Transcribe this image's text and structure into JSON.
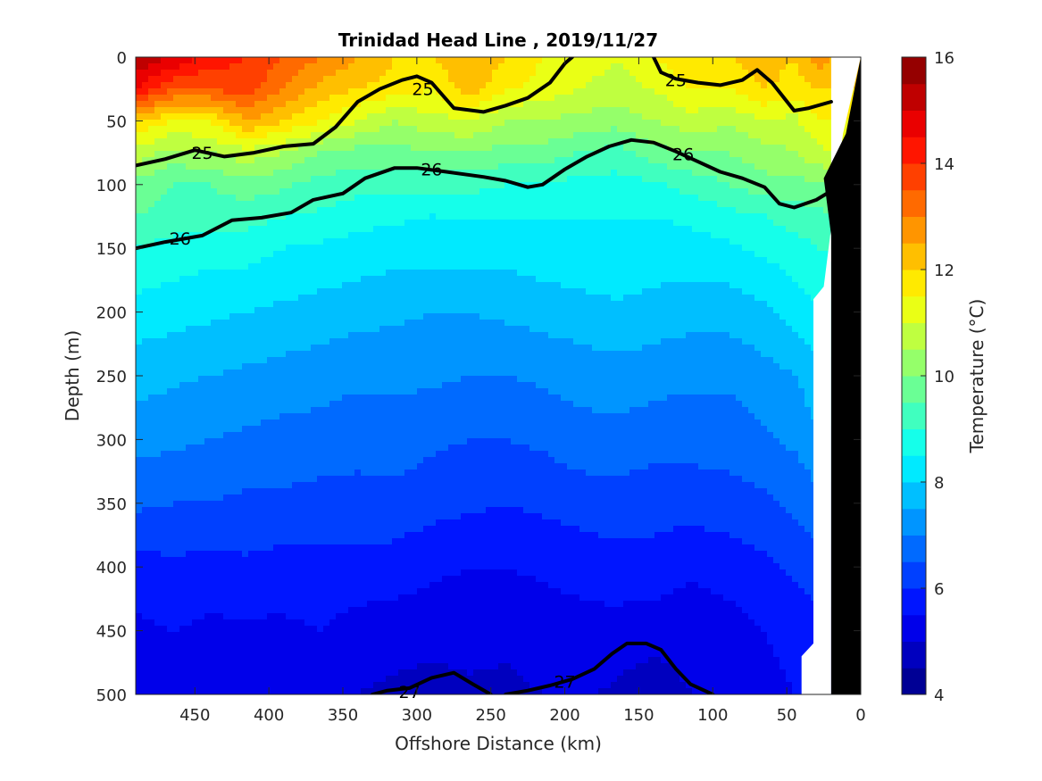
{
  "chart_data": {
    "type": "heatmap",
    "subtype": "filled-contour-section",
    "title": "Trinidad Head Line , 2019/11/27",
    "xlabel": "Offshore Distance (km)",
    "ylabel": "Depth (m)",
    "xlim": [
      490,
      0
    ],
    "ylim": [
      0,
      500
    ],
    "x_reversed": true,
    "y_reversed": true,
    "xticks": [
      450,
      400,
      350,
      300,
      250,
      200,
      150,
      100,
      50,
      0
    ],
    "yticks": [
      0,
      50,
      100,
      150,
      200,
      250,
      300,
      350,
      400,
      450,
      500
    ],
    "colorbar": {
      "label": "Temperature (°C)",
      "min": 4,
      "max": 16,
      "step": 0.5,
      "ticks": [
        4,
        6,
        8,
        10,
        12,
        14,
        16
      ],
      "colormap": "jet",
      "position": "right"
    },
    "temperature_field": {
      "distance_km": [
        490,
        465,
        440,
        415,
        390,
        365,
        340,
        315,
        290,
        265,
        240,
        215,
        190,
        165,
        140,
        115,
        90,
        65,
        45,
        30,
        20
      ],
      "depth_m": [
        0,
        25,
        50,
        75,
        100,
        125,
        150,
        200,
        250,
        300,
        350,
        400,
        450,
        500
      ],
      "rows": [
        [
          15.5,
          15.0,
          14.3,
          14.0,
          13.5,
          13.0,
          12.5,
          12.0,
          12.0,
          12.5,
          12.0,
          11.5,
          11.3,
          11.0,
          11.5,
          12.0,
          12.0,
          12.3,
          12.0,
          12.8,
          12.5
        ],
        [
          14.5,
          13.5,
          13.5,
          13.8,
          13.0,
          12.3,
          12.0,
          11.8,
          11.5,
          12.3,
          11.6,
          11.3,
          11.0,
          10.8,
          11.0,
          11.5,
          11.5,
          12.0,
          11.8,
          12.0,
          12.0
        ],
        [
          12.0,
          11.5,
          11.5,
          12.5,
          12.0,
          11.5,
          11.0,
          10.5,
          10.8,
          11.0,
          10.5,
          10.5,
          10.3,
          10.2,
          10.5,
          10.8,
          10.6,
          11.0,
          10.8,
          11.5,
          11.5
        ],
        [
          10.8,
          10.3,
          10.5,
          10.8,
          10.5,
          10.0,
          9.8,
          9.8,
          10.0,
          10.0,
          9.8,
          9.8,
          9.5,
          9.3,
          9.8,
          10.0,
          10.0,
          10.3,
          10.5,
          10.8,
          11.0
        ],
        [
          9.8,
          9.5,
          9.5,
          9.8,
          9.6,
          9.3,
          9.2,
          9.2,
          9.2,
          9.2,
          9.0,
          9.0,
          8.8,
          8.8,
          8.9,
          9.2,
          9.5,
          9.8,
          9.8,
          10.0,
          10.0
        ],
        [
          9.5,
          9.3,
          9.2,
          9.2,
          9.0,
          8.9,
          8.7,
          8.6,
          8.5,
          8.5,
          8.5,
          8.5,
          8.5,
          8.5,
          8.5,
          8.6,
          8.8,
          9.0,
          9.2,
          9.3,
          9.5
        ],
        [
          9.0,
          8.8,
          8.7,
          8.7,
          8.5,
          8.4,
          8.3,
          8.2,
          8.2,
          8.2,
          8.2,
          8.3,
          8.4,
          8.4,
          8.3,
          8.3,
          8.4,
          8.6,
          8.8,
          9.0,
          9.0
        ],
        [
          8.3,
          8.2,
          8.1,
          8.0,
          7.9,
          7.8,
          7.7,
          7.6,
          7.5,
          7.5,
          7.6,
          7.7,
          7.8,
          7.9,
          7.8,
          7.7,
          7.7,
          7.9,
          8.2,
          8.4,
          8.4
        ],
        [
          7.7,
          7.6,
          7.5,
          7.4,
          7.3,
          7.2,
          7.1,
          7.1,
          7.1,
          7.0,
          7.0,
          7.1,
          7.2,
          7.3,
          7.2,
          7.1,
          7.1,
          7.3,
          7.5,
          7.8,
          7.8
        ],
        [
          7.2,
          7.1,
          7.0,
          6.9,
          6.8,
          6.8,
          6.7,
          6.8,
          6.6,
          6.5,
          6.5,
          6.6,
          6.8,
          6.8,
          6.7,
          6.7,
          6.7,
          6.9,
          7.1,
          7.4,
          7.4
        ],
        [
          6.6,
          6.5,
          6.5,
          6.4,
          6.4,
          6.3,
          6.3,
          6.3,
          6.2,
          6.1,
          6.0,
          6.1,
          6.2,
          6.3,
          6.2,
          6.2,
          6.3,
          6.4,
          6.6,
          6.8,
          6.8
        ],
        [
          5.8,
          5.9,
          5.8,
          5.9,
          5.8,
          5.8,
          5.8,
          5.8,
          5.6,
          5.5,
          5.5,
          5.6,
          5.7,
          5.8,
          5.8,
          5.6,
          5.7,
          5.9,
          6.1,
          6.3,
          6.3
        ],
        [
          5.4,
          5.5,
          5.4,
          5.4,
          5.4,
          5.5,
          5.3,
          5.2,
          5.2,
          5.2,
          5.1,
          5.2,
          5.3,
          5.3,
          5.2,
          5.2,
          5.3,
          5.5,
          5.7,
          5.8,
          5.8
        ],
        [
          5.2,
          5.3,
          5.2,
          5.2,
          5.2,
          5.2,
          5.0,
          4.9,
          4.8,
          4.9,
          4.9,
          5.0,
          5.1,
          4.9,
          4.7,
          5.0,
          5.2,
          5.3,
          5.5,
          5.6,
          5.6
        ]
      ]
    },
    "density_contours": [
      {
        "label": "25",
        "label_positions": [
          [
            296,
            25
          ],
          [
            445,
            75
          ],
          [
            125,
            18
          ]
        ],
        "points": [
          [
            490,
            85
          ],
          [
            470,
            80
          ],
          [
            450,
            73
          ],
          [
            430,
            78
          ],
          [
            410,
            75
          ],
          [
            390,
            70
          ],
          [
            370,
            68
          ],
          [
            355,
            55
          ],
          [
            340,
            35
          ],
          [
            325,
            25
          ],
          [
            310,
            18
          ],
          [
            300,
            15
          ],
          [
            290,
            20
          ],
          [
            275,
            40
          ],
          [
            255,
            43
          ],
          [
            240,
            38
          ],
          [
            225,
            32
          ],
          [
            210,
            20
          ],
          [
            200,
            5
          ],
          [
            195,
            0
          ]
        ]
      },
      {
        "label": "25",
        "label_positions": [
          [
            125,
            18
          ]
        ],
        "points": [
          [
            140,
            0
          ],
          [
            135,
            12
          ],
          [
            125,
            17
          ],
          [
            110,
            20
          ],
          [
            95,
            22
          ],
          [
            80,
            18
          ],
          [
            70,
            10
          ],
          [
            60,
            20
          ],
          [
            45,
            42
          ],
          [
            35,
            40
          ],
          [
            20,
            35
          ]
        ]
      },
      {
        "label": "26",
        "label_positions": [
          [
            290,
            88
          ],
          [
            460,
            142
          ],
          [
            120,
            76
          ]
        ],
        "points": [
          [
            490,
            150
          ],
          [
            470,
            145
          ],
          [
            445,
            140
          ],
          [
            425,
            128
          ],
          [
            405,
            126
          ],
          [
            385,
            122
          ],
          [
            370,
            112
          ],
          [
            350,
            107
          ],
          [
            335,
            95
          ],
          [
            315,
            87
          ],
          [
            300,
            87
          ],
          [
            280,
            90
          ],
          [
            255,
            94
          ],
          [
            240,
            97
          ],
          [
            225,
            102
          ],
          [
            215,
            100
          ],
          [
            200,
            88
          ],
          [
            185,
            78
          ],
          [
            170,
            70
          ],
          [
            155,
            65
          ],
          [
            140,
            67
          ],
          [
            125,
            74
          ],
          [
            110,
            82
          ],
          [
            95,
            90
          ],
          [
            80,
            95
          ],
          [
            65,
            102
          ],
          [
            55,
            115
          ],
          [
            45,
            118
          ],
          [
            30,
            112
          ],
          [
            20,
            105
          ]
        ]
      },
      {
        "label": "27",
        "label_positions": [
          [
            305,
            498
          ],
          [
            200,
            490
          ]
        ],
        "points": [
          [
            330,
            500
          ],
          [
            320,
            497
          ],
          [
            305,
            495
          ],
          [
            290,
            487
          ],
          [
            275,
            483
          ],
          [
            262,
            492
          ],
          [
            250,
            500
          ]
        ]
      },
      {
        "label": "27",
        "label_positions": [
          [
            200,
            490
          ]
        ],
        "points": [
          [
            240,
            500
          ],
          [
            225,
            497
          ],
          [
            210,
            493
          ],
          [
            195,
            488
          ],
          [
            180,
            480
          ],
          [
            168,
            468
          ],
          [
            158,
            460
          ],
          [
            145,
            460
          ],
          [
            135,
            465
          ],
          [
            125,
            480
          ],
          [
            115,
            492
          ],
          [
            100,
            500
          ]
        ]
      }
    ],
    "bottom_mask": {
      "description": "seafloor / no-data region",
      "land_points": [
        [
          20,
          500
        ],
        [
          20,
          140
        ],
        [
          25,
          95
        ],
        [
          10,
          60
        ],
        [
          0,
          0
        ],
        [
          0,
          500
        ]
      ],
      "nodata_points": [
        [
          40,
          500
        ],
        [
          40,
          470
        ],
        [
          32,
          460
        ],
        [
          32,
          190
        ],
        [
          25,
          180
        ],
        [
          20,
          150
        ],
        [
          20,
          500
        ]
      ],
      "nodata_top_points": [
        [
          20,
          0
        ],
        [
          20,
          160
        ],
        [
          25,
          180
        ],
        [
          12,
          60
        ],
        [
          0,
          0
        ]
      ]
    }
  }
}
